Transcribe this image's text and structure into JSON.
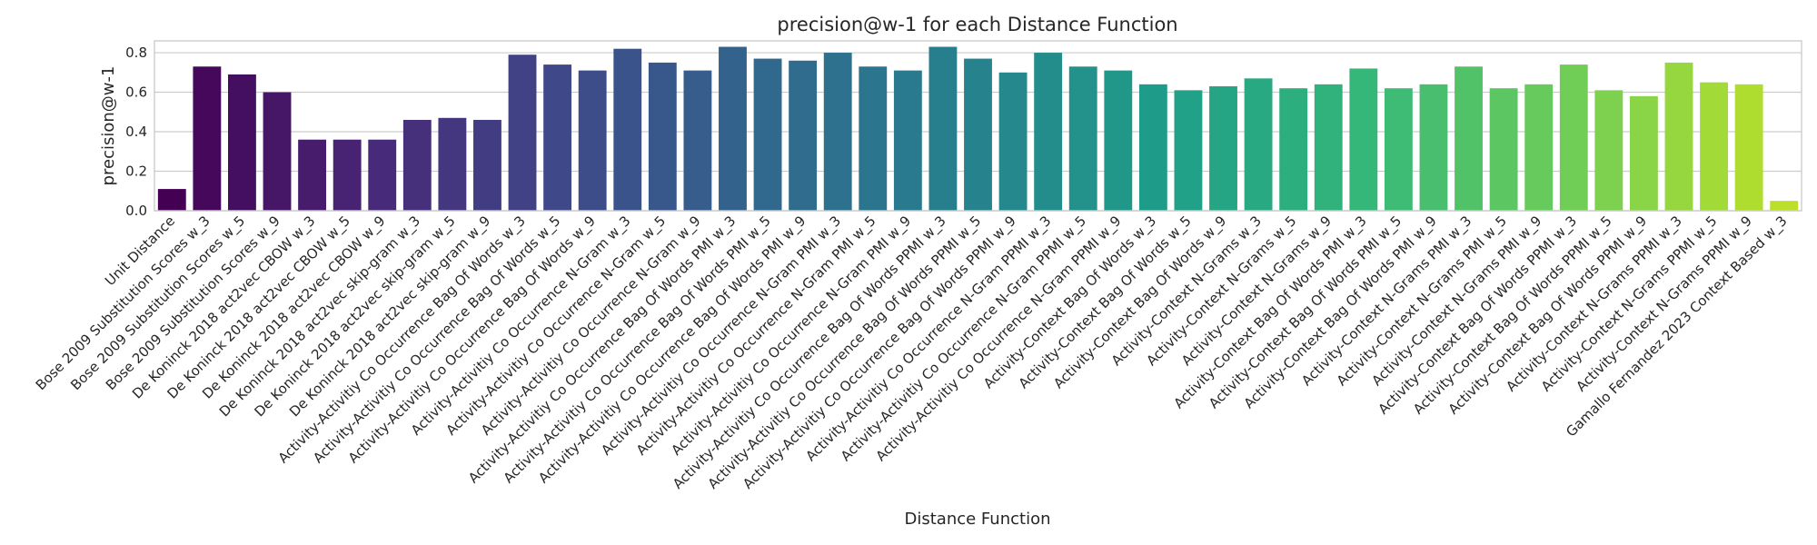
{
  "chart_data": {
    "type": "bar",
    "title": "precision@w-1 for each Distance Function",
    "xlabel": "Distance Function",
    "ylabel": "precision@w-1",
    "ylim": [
      0,
      0.86
    ],
    "yticks": [
      0.0,
      0.2,
      0.4,
      0.6,
      0.8
    ],
    "ytick_labels": [
      "0.0",
      "0.2",
      "0.4",
      "0.6",
      "0.8"
    ],
    "grid": true,
    "palette": "viridis",
    "categories": [
      "Unit Distance",
      "Bose 2009 Substitution Scores w_3",
      "Bose 2009 Substitution Scores w_5",
      "Bose 2009 Substitution Scores w_9",
      "De Koninck 2018 act2vec CBOW w_3",
      "De Koninck 2018 act2vec CBOW w_5",
      "De Koninck 2018 act2vec CBOW w_9",
      "De Koninck 2018 act2vec skip-gram w_3",
      "De Koninck 2018 act2vec skip-gram w_5",
      "De Koninck 2018 act2vec skip-gram w_9",
      "Activity-Activitiy Co Occurrence Bag Of Words w_3",
      "Activity-Activitiy Co Occurrence Bag Of Words w_5",
      "Activity-Activitiy Co Occurrence Bag Of Words w_9",
      "Activity-Activitiy Co Occurrence N-Gram w_3",
      "Activity-Activitiy Co Occurrence N-Gram w_5",
      "Activity-Activitiy Co Occurrence N-Gram w_9",
      "Activity-Activitiy Co Occurrence Bag Of Words PMI w_3",
      "Activity-Activitiy Co Occurrence Bag Of Words PMI w_5",
      "Activity-Activitiy Co Occurrence Bag Of Words PMI w_9",
      "Activity-Activitiy Co Occurrence N-Gram PMI w_3",
      "Activity-Activitiy Co Occurrence N-Gram PMI w_5",
      "Activity-Activitiy Co Occurrence N-Gram PMI w_9",
      "Activity-Activitiy Co Occurrence Bag Of Words PPMI w_3",
      "Activity-Activitiy Co Occurrence Bag Of Words PPMI w_5",
      "Activity-Activitiy Co Occurrence Bag Of Words PPMI w_9",
      "Activity-Activitiy Co Occurrence N-Gram PPMI w_3",
      "Activity-Activitiy Co Occurrence N-Gram PPMI w_5",
      "Activity-Activitiy Co Occurrence N-Gram PPMI w_9",
      "Activity-Context Bag Of Words w_3",
      "Activity-Context Bag Of Words w_5",
      "Activity-Context Bag Of Words w_9",
      "Activity-Context N-Grams w_3",
      "Activity-Context N-Grams w_5",
      "Activity-Context N-Grams w_9",
      "Activity-Context Bag Of Words PMI w_3",
      "Activity-Context Bag Of Words PMI w_5",
      "Activity-Context Bag Of Words PMI w_9",
      "Activity-Context N-Grams PMI w_3",
      "Activity-Context N-Grams PMI w_5",
      "Activity-Context N-Grams PMI w_9",
      "Activity-Context Bag Of Words PPMI w_3",
      "Activity-Context Bag Of Words PPMI w_5",
      "Activity-Context Bag Of Words PPMI w_9",
      "Activity-Context N-Grams PPMI w_3",
      "Activity-Context N-Grams PPMI w_5",
      "Activity-Context N-Grams PPMI w_9",
      "Gamallo Fernandez 2023 Context Based w_3"
    ],
    "values": [
      0.11,
      0.73,
      0.69,
      0.6,
      0.36,
      0.36,
      0.36,
      0.46,
      0.47,
      0.46,
      0.79,
      0.74,
      0.71,
      0.82,
      0.75,
      0.71,
      0.83,
      0.77,
      0.76,
      0.8,
      0.73,
      0.71,
      0.83,
      0.77,
      0.7,
      0.8,
      0.73,
      0.71,
      0.64,
      0.61,
      0.63,
      0.67,
      0.62,
      0.64,
      0.72,
      0.62,
      0.64,
      0.73,
      0.62,
      0.64,
      0.74,
      0.61,
      0.58,
      0.75,
      0.65,
      0.64,
      0.05
    ]
  }
}
